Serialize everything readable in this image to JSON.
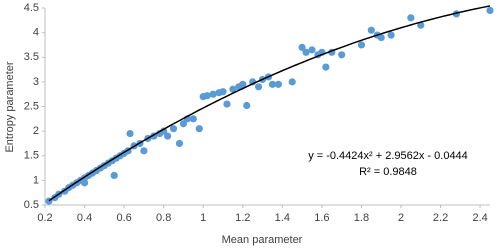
{
  "chart_data": {
    "type": "scatter",
    "x_label": "Mean parameter",
    "y_label": "Entropy parameter",
    "xlim": [
      0.2,
      2.45
    ],
    "ylim": [
      0.5,
      4.5
    ],
    "xticks": [
      0.2,
      0.4,
      0.6,
      0.8,
      1,
      1.2,
      1.4,
      1.6,
      1.8,
      2,
      2.2,
      2.4
    ],
    "yticks": [
      0.5,
      1,
      1.5,
      2,
      2.5,
      3,
      3.5,
      4,
      4.5
    ],
    "grid": false,
    "series": [
      {
        "color": "#5b9bd5",
        "x": [
          0.22,
          0.25,
          0.27,
          0.3,
          0.32,
          0.34,
          0.36,
          0.38,
          0.4,
          0.4,
          0.42,
          0.44,
          0.46,
          0.48,
          0.5,
          0.52,
          0.54,
          0.55,
          0.56,
          0.58,
          0.6,
          0.62,
          0.63,
          0.65,
          0.68,
          0.7,
          0.72,
          0.75,
          0.78,
          0.8,
          0.82,
          0.85,
          0.88,
          0.9,
          0.92,
          0.95,
          0.98,
          1.0,
          1.02,
          1.05,
          1.08,
          1.1,
          1.12,
          1.15,
          1.18,
          1.2,
          1.22,
          1.25,
          1.28,
          1.3,
          1.33,
          1.35,
          1.38,
          1.45,
          1.5,
          1.52,
          1.55,
          1.58,
          1.6,
          1.62,
          1.65,
          1.7,
          1.8,
          1.85,
          1.88,
          1.9,
          1.95,
          2.05,
          2.1,
          2.28,
          2.45
        ],
        "values": [
          0.58,
          0.65,
          0.72,
          0.78,
          0.85,
          0.9,
          0.95,
          1.0,
          1.05,
          0.95,
          1.1,
          1.15,
          1.2,
          1.25,
          1.3,
          1.35,
          1.4,
          1.1,
          1.45,
          1.5,
          1.55,
          1.6,
          1.95,
          1.7,
          1.75,
          1.6,
          1.85,
          1.9,
          1.95,
          2.0,
          1.9,
          2.05,
          1.75,
          2.15,
          2.25,
          2.25,
          2.05,
          2.7,
          2.72,
          2.75,
          2.78,
          2.8,
          2.55,
          2.85,
          2.9,
          2.95,
          2.52,
          3.0,
          2.9,
          3.05,
          3.1,
          2.95,
          2.95,
          3.0,
          3.7,
          3.6,
          3.65,
          3.55,
          3.6,
          3.3,
          3.6,
          3.55,
          3.75,
          4.05,
          3.95,
          3.9,
          3.95,
          4.3,
          4.15,
          4.38,
          4.45
        ]
      }
    ],
    "trendline": {
      "color": "#000000",
      "coefficients": [
        -0.4424,
        2.9562,
        -0.0444
      ],
      "equation": "y = -0.4424x² + 2.9562x - 0.0444",
      "r2_label": "R² = 0.9848"
    }
  }
}
